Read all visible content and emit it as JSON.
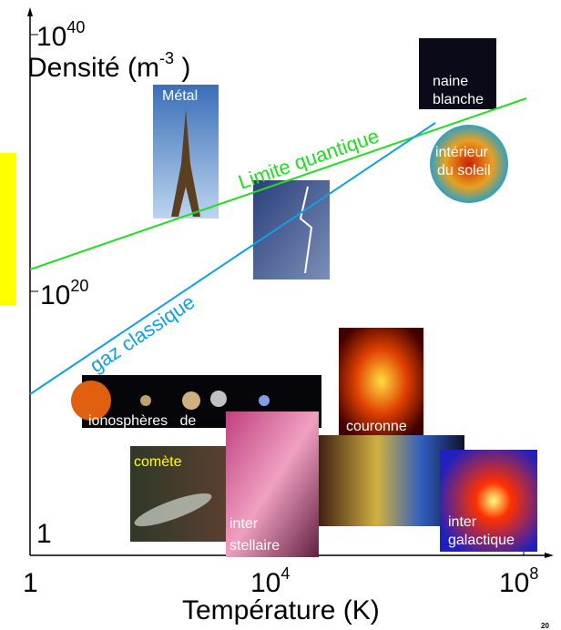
{
  "y_axis": {
    "label": {
      "text": "Densité (m",
      "exp": "-3",
      "close": " )"
    },
    "ticks": [
      {
        "base": "10",
        "exp": "40"
      },
      {
        "base": "10",
        "exp": "20"
      },
      {
        "base": "1"
      }
    ]
  },
  "x_axis": {
    "label": "Température (K)",
    "ticks": [
      {
        "base": "1"
      },
      {
        "base": "10",
        "exp": "4"
      },
      {
        "base": "10",
        "exp": "8"
      }
    ]
  },
  "lines": {
    "quantum": "Limite quantique",
    "classical": "gaz classique"
  },
  "photos": {
    "metal": "Métal",
    "white_dwarf": [
      "naine",
      "blanche"
    ],
    "sun_interior": [
      "intérieur",
      "du soleil"
    ],
    "ionosphere": "ionosphères   de",
    "corona": "couronne",
    "comet": "comète",
    "interstellar": [
      "inter",
      "stellaire"
    ],
    "intergalactic": [
      "inter",
      "galactique"
    ]
  },
  "page_number": "20"
}
